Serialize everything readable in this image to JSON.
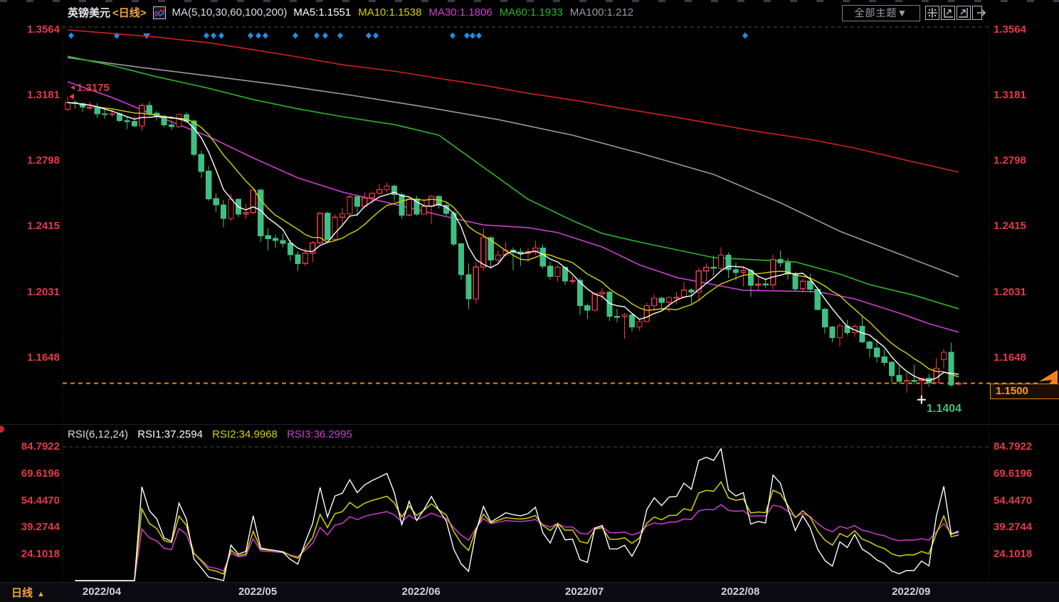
{
  "header": {
    "symbol": "英镑美元",
    "period_tag": "<日线>",
    "indicator_icon": "candlestick-chart-icon",
    "ma_settings": "MA(5,10,30,60,100,200)",
    "ma_legend": [
      {
        "label": "MA5:1.1551",
        "color": "#ffffff"
      },
      {
        "label": "MA10:1.1538",
        "color": "#d4d400"
      },
      {
        "label": "MA30:1.1806",
        "color": "#cf3fcf"
      },
      {
        "label": "MA60:1.1933",
        "color": "#2db52d"
      },
      {
        "label": "MA100:1.212",
        "color": "#9a9aa2"
      }
    ],
    "theme_selector": "全部主题▼",
    "toolbar_icons": [
      "move-icon",
      "left-axis-chart-icon",
      "right-axis-chart-icon",
      "detach-window-icon"
    ]
  },
  "price_axis": {
    "labels": [
      1.3564,
      1.3181,
      1.2798,
      1.2415,
      1.2031,
      1.1648
    ],
    "color": "#e23b47"
  },
  "annotations": {
    "period_high": "1.3175",
    "high_value": 1.3175,
    "period_low": "1.1404",
    "low_value": 1.1404,
    "last_price": "1.1500",
    "last_price_value": 1.15,
    "last_price_line_color": "#e0831c",
    "low_label_color": "#3fbf83"
  },
  "chart_data": {
    "type": "candlestick",
    "title": "英镑美元 日线 GBP/USD Daily",
    "x_start": "2022-03-30",
    "x_end": "2022-09-14",
    "x_axis_labels": [
      "2022/04",
      "2022/05",
      "2022/06",
      "2022/07",
      "2022/08",
      "2022/09"
    ],
    "y_ticks": [
      1.3564,
      1.3181,
      1.2798,
      1.2415,
      1.2031,
      1.1648
    ],
    "up_color": "#ef3a46",
    "down_color": "#3fbf83",
    "event_marker_color": "#1f8fe6",
    "event_markers_x": [
      100,
      164,
      290,
      300,
      311,
      352,
      363,
      373,
      415,
      445,
      457,
      478,
      518,
      528,
      636,
      656,
      664,
      673,
      1047
    ],
    "event_marker_triangle_x": 206,
    "candles": [
      [
        "03-30",
        1.31,
        1.3175,
        1.309,
        1.3139
      ],
      [
        "03-31",
        1.3139,
        1.3155,
        1.3105,
        1.3134
      ],
      [
        "04-01",
        1.3134,
        1.314,
        1.3085,
        1.3113
      ],
      [
        "04-04",
        1.3113,
        1.3145,
        1.3095,
        1.3113
      ],
      [
        "04-05",
        1.3113,
        1.3135,
        1.305,
        1.3074
      ],
      [
        "04-06",
        1.3074,
        1.31,
        1.3045,
        1.3073
      ],
      [
        "04-07",
        1.3073,
        1.3105,
        1.3055,
        1.3074
      ],
      [
        "04-08",
        1.3074,
        1.3085,
        1.3025,
        1.3034
      ],
      [
        "04-11",
        1.3034,
        1.306,
        1.2985,
        1.3029
      ],
      [
        "04-12",
        1.3029,
        1.306,
        1.2995,
        1.3003
      ],
      [
        "04-13",
        1.3003,
        1.3135,
        1.2975,
        1.3122
      ],
      [
        "04-14",
        1.3122,
        1.3147,
        1.306,
        1.3078
      ],
      [
        "04-15",
        1.3078,
        1.309,
        1.3035,
        1.306
      ],
      [
        "04-18",
        1.306,
        1.3065,
        1.2995,
        1.3009
      ],
      [
        "04-19",
        1.3009,
        1.3035,
        1.298,
        1.2999
      ],
      [
        "04-20",
        1.2999,
        1.3075,
        1.299,
        1.3069
      ],
      [
        "04-21",
        1.3069,
        1.3085,
        1.302,
        1.3031
      ],
      [
        "04-22",
        1.3031,
        1.304,
        1.2825,
        1.2837
      ],
      [
        "04-25",
        1.2837,
        1.286,
        1.27,
        1.2738
      ],
      [
        "04-26",
        1.2738,
        1.277,
        1.2565,
        1.2578
      ],
      [
        "04-27",
        1.2578,
        1.261,
        1.25,
        1.2541
      ],
      [
        "04-28",
        1.2541,
        1.257,
        1.241,
        1.2462
      ],
      [
        "04-29",
        1.2462,
        1.2605,
        1.245,
        1.2575
      ],
      [
        "05-02",
        1.2575,
        1.258,
        1.247,
        1.2489
      ],
      [
        "05-03",
        1.2489,
        1.255,
        1.246,
        1.2497
      ],
      [
        "05-04",
        1.2497,
        1.2635,
        1.249,
        1.2629
      ],
      [
        "05-05",
        1.2629,
        1.2635,
        1.2325,
        1.2362
      ],
      [
        "05-06",
        1.2362,
        1.2405,
        1.2275,
        1.2345
      ],
      [
        "05-09",
        1.2345,
        1.237,
        1.229,
        1.2334
      ],
      [
        "05-10",
        1.2334,
        1.2375,
        1.2295,
        1.2318
      ],
      [
        "05-11",
        1.2318,
        1.2335,
        1.2215,
        1.2251
      ],
      [
        "05-12",
        1.2251,
        1.227,
        1.2155,
        1.22
      ],
      [
        "05-13",
        1.22,
        1.229,
        1.2185,
        1.226
      ],
      [
        "05-16",
        1.226,
        1.233,
        1.221,
        1.232
      ],
      [
        "05-17",
        1.232,
        1.25,
        1.231,
        1.2493
      ],
      [
        "05-18",
        1.2493,
        1.2505,
        1.233,
        1.234
      ],
      [
        "05-19",
        1.234,
        1.2485,
        1.233,
        1.247
      ],
      [
        "05-20",
        1.247,
        1.2525,
        1.243,
        1.249
      ],
      [
        "05-23",
        1.249,
        1.26,
        1.247,
        1.2588
      ],
      [
        "05-24",
        1.2588,
        1.26,
        1.2475,
        1.2533
      ],
      [
        "05-25",
        1.2533,
        1.2615,
        1.252,
        1.2582
      ],
      [
        "05-26",
        1.2582,
        1.262,
        1.2545,
        1.261
      ],
      [
        "05-27",
        1.261,
        1.2665,
        1.26,
        1.2631
      ],
      [
        "05-30",
        1.2631,
        1.267,
        1.2615,
        1.2652
      ],
      [
        "05-31",
        1.2652,
        1.266,
        1.256,
        1.2602
      ],
      [
        "06-01",
        1.2602,
        1.2615,
        1.246,
        1.2482
      ],
      [
        "06-02",
        1.2482,
        1.259,
        1.2475,
        1.2576
      ],
      [
        "06-03",
        1.2576,
        1.2595,
        1.248,
        1.2488
      ],
      [
        "06-06",
        1.2488,
        1.2575,
        1.2485,
        1.2533
      ],
      [
        "06-07",
        1.2533,
        1.26,
        1.243,
        1.2591
      ],
      [
        "06-08",
        1.2591,
        1.26,
        1.252,
        1.2539
      ],
      [
        "06-09",
        1.2539,
        1.256,
        1.248,
        1.2493
      ],
      [
        "06-10",
        1.2493,
        1.2505,
        1.23,
        1.2314
      ],
      [
        "06-13",
        1.2314,
        1.232,
        1.2105,
        1.2134
      ],
      [
        "06-14",
        1.2134,
        1.22,
        1.1934,
        1.1993
      ],
      [
        "06-15",
        1.1993,
        1.221,
        1.1965,
        1.2179
      ],
      [
        "06-16",
        1.2179,
        1.2406,
        1.216,
        1.2351
      ],
      [
        "06-17",
        1.2351,
        1.236,
        1.217,
        1.222
      ],
      [
        "06-20",
        1.222,
        1.2275,
        1.22,
        1.2249
      ],
      [
        "06-21",
        1.2249,
        1.2325,
        1.224,
        1.2277
      ],
      [
        "06-22",
        1.2277,
        1.2295,
        1.216,
        1.2266
      ],
      [
        "06-23",
        1.2266,
        1.229,
        1.2185,
        1.226
      ],
      [
        "06-24",
        1.226,
        1.229,
        1.221,
        1.2268
      ],
      [
        "06-27",
        1.2268,
        1.2332,
        1.225,
        1.229
      ],
      [
        "06-28",
        1.229,
        1.231,
        1.217,
        1.2184
      ],
      [
        "06-29",
        1.2184,
        1.221,
        1.2105,
        1.2124
      ],
      [
        "06-30",
        1.2124,
        1.219,
        1.2095,
        1.2178
      ],
      [
        "07-01",
        1.2178,
        1.218,
        1.2075,
        1.2098
      ],
      [
        "07-04",
        1.2098,
        1.2125,
        1.208,
        1.21
      ],
      [
        "07-05",
        1.21,
        1.2115,
        1.19,
        1.1953
      ],
      [
        "07-06",
        1.1953,
        1.1965,
        1.1875,
        1.1926
      ],
      [
        "07-07",
        1.1926,
        1.203,
        1.192,
        1.2023
      ],
      [
        "07-08",
        1.2023,
        1.2055,
        1.1985,
        1.2033
      ],
      [
        "07-11",
        1.2033,
        1.204,
        1.1865,
        1.1891
      ],
      [
        "07-12",
        1.1891,
        1.1935,
        1.1855,
        1.189
      ],
      [
        "07-13",
        1.189,
        1.191,
        1.176,
        1.1899
      ],
      [
        "07-14",
        1.1899,
        1.1905,
        1.18,
        1.1829
      ],
      [
        "07-15",
        1.1829,
        1.187,
        1.1805,
        1.186
      ],
      [
        "07-18",
        1.186,
        1.197,
        1.1855,
        1.1953
      ],
      [
        "07-19",
        1.1953,
        1.202,
        1.1925,
        1.1997
      ],
      [
        "07-20",
        1.1997,
        1.2005,
        1.1935,
        1.1973
      ],
      [
        "07-21",
        1.1973,
        1.201,
        1.1915,
        1.2001
      ],
      [
        "07-22",
        1.2001,
        1.2035,
        1.196,
        1.2003
      ],
      [
        "07-25",
        1.2003,
        1.209,
        1.1995,
        1.2044
      ],
      [
        "07-26",
        1.2044,
        1.2055,
        1.196,
        1.2033
      ],
      [
        "07-27",
        1.2033,
        1.2175,
        1.1985,
        1.2156
      ],
      [
        "07-28",
        1.2156,
        1.22,
        1.209,
        1.2177
      ],
      [
        "07-29",
        1.2177,
        1.2245,
        1.213,
        1.2172
      ],
      [
        "08-01",
        1.2172,
        1.2295,
        1.216,
        1.2249
      ],
      [
        "08-02",
        1.2249,
        1.2265,
        1.2115,
        1.2163
      ],
      [
        "08-03",
        1.2163,
        1.2205,
        1.21,
        1.2148
      ],
      [
        "08-04",
        1.2148,
        1.2185,
        1.2065,
        1.2158
      ],
      [
        "08-05",
        1.2158,
        1.217,
        1.2005,
        1.2073
      ],
      [
        "08-08",
        1.2073,
        1.2135,
        1.2045,
        1.2079
      ],
      [
        "08-09",
        1.2079,
        1.2115,
        1.206,
        1.2075
      ],
      [
        "08-10",
        1.2075,
        1.225,
        1.205,
        1.2223
      ],
      [
        "08-11",
        1.2223,
        1.2275,
        1.218,
        1.2204
      ],
      [
        "08-12",
        1.2204,
        1.223,
        1.2105,
        1.2138
      ],
      [
        "08-15",
        1.2138,
        1.215,
        1.2035,
        1.2052
      ],
      [
        "08-16",
        1.2052,
        1.211,
        1.203,
        1.2096
      ],
      [
        "08-17",
        1.2096,
        1.214,
        1.203,
        1.2049
      ],
      [
        "08-18",
        1.2049,
        1.206,
        1.1925,
        1.1932
      ],
      [
        "08-19",
        1.1932,
        1.194,
        1.179,
        1.1829
      ],
      [
        "08-22",
        1.1829,
        1.1835,
        1.174,
        1.1766
      ],
      [
        "08-23",
        1.1766,
        1.185,
        1.1715,
        1.1835
      ],
      [
        "08-24",
        1.1835,
        1.187,
        1.178,
        1.1795
      ],
      [
        "08-25",
        1.1795,
        1.1845,
        1.177,
        1.1832
      ],
      [
        "08-26",
        1.1832,
        1.19,
        1.1735,
        1.1741
      ],
      [
        "08-29",
        1.1741,
        1.175,
        1.165,
        1.1705
      ],
      [
        "08-30",
        1.1705,
        1.176,
        1.162,
        1.1654
      ],
      [
        "08-31",
        1.1654,
        1.1695,
        1.16,
        1.1622
      ],
      [
        "09-01",
        1.1622,
        1.163,
        1.15,
        1.1545
      ],
      [
        "09-02",
        1.1545,
        1.16,
        1.1498,
        1.1511
      ],
      [
        "09-05",
        1.1511,
        1.156,
        1.1444,
        1.1517
      ],
      [
        "09-06",
        1.1517,
        1.1608,
        1.1495,
        1.1516
      ],
      [
        "09-07",
        1.1516,
        1.153,
        1.1404,
        1.1529
      ],
      [
        "09-08",
        1.1529,
        1.1555,
        1.148,
        1.1503
      ],
      [
        "09-09",
        1.1503,
        1.1647,
        1.15,
        1.1588
      ],
      [
        "09-12",
        1.1638,
        1.1699,
        1.1585,
        1.1681
      ],
      [
        "09-13",
        1.1681,
        1.1738,
        1.148,
        1.149
      ],
      [
        "09-14",
        1.15,
        1.1513,
        1.1486,
        1.15
      ]
    ],
    "ma_colors": {
      "ma5": "#ffffff",
      "ma10": "#d4d400",
      "ma30": "#cf3fcf",
      "ma60": "#2db52d",
      "ma100": "#9a9aa2",
      "ma200": "#d22020"
    },
    "ma_overlays": {
      "ma200": [
        [
          0,
          1.3564
        ],
        [
          6,
          1.3543
        ],
        [
          12,
          1.3522
        ],
        [
          19,
          1.3489
        ],
        [
          25,
          1.3448
        ],
        [
          31,
          1.3406
        ],
        [
          37,
          1.336
        ],
        [
          44,
          1.3323
        ],
        [
          50,
          1.3281
        ],
        [
          56,
          1.324
        ],
        [
          62,
          1.3194
        ],
        [
          69,
          1.3148
        ],
        [
          75,
          1.3103
        ],
        [
          81,
          1.3061
        ],
        [
          87,
          1.3015
        ],
        [
          93,
          1.297
        ],
        [
          100,
          1.2924
        ],
        [
          106,
          1.2874
        ],
        [
          112,
          1.2812
        ],
        [
          120,
          1.2733
        ]
      ],
      "ma100": [
        [
          0,
          1.3402
        ],
        [
          10,
          1.3344
        ],
        [
          20,
          1.329
        ],
        [
          29,
          1.324
        ],
        [
          39,
          1.3177
        ],
        [
          48,
          1.3115
        ],
        [
          58,
          1.304
        ],
        [
          68,
          1.2949
        ],
        [
          77,
          1.2845
        ],
        [
          87,
          1.272
        ],
        [
          96,
          1.2554
        ],
        [
          104,
          1.2388
        ],
        [
          112,
          1.2255
        ],
        [
          120,
          1.2122
        ]
      ],
      "ma60": [
        [
          0,
          1.341
        ],
        [
          6,
          1.3356
        ],
        [
          12,
          1.329
        ],
        [
          19,
          1.3223
        ],
        [
          25,
          1.3157
        ],
        [
          31,
          1.3103
        ],
        [
          37,
          1.3057
        ],
        [
          44,
          1.3011
        ],
        [
          50,
          1.2949
        ],
        [
          56,
          1.2762
        ],
        [
          62,
          1.2575
        ],
        [
          68,
          1.245
        ],
        [
          72,
          1.2375
        ],
        [
          77,
          1.2325
        ],
        [
          87,
          1.2234
        ],
        [
          98,
          1.2209
        ],
        [
          104,
          1.2138
        ],
        [
          108,
          1.2076
        ],
        [
          114,
          1.2014
        ],
        [
          120,
          1.1935
        ]
      ],
      "ma30": [
        [
          0,
          1.3261
        ],
        [
          6,
          1.3169
        ],
        [
          12,
          1.3061
        ],
        [
          19,
          1.2941
        ],
        [
          25,
          1.2816
        ],
        [
          31,
          1.27
        ],
        [
          37,
          1.2617
        ],
        [
          44,
          1.2546
        ],
        [
          50,
          1.2483
        ],
        [
          56,
          1.2425
        ],
        [
          62,
          1.2409
        ],
        [
          66,
          1.238
        ],
        [
          72,
          1.2296
        ],
        [
          77,
          1.2192
        ],
        [
          82,
          1.2118
        ],
        [
          87,
          1.2076
        ],
        [
          91,
          1.2043
        ],
        [
          101,
          1.2035
        ],
        [
          106,
          1.1993
        ],
        [
          112,
          1.191
        ],
        [
          116,
          1.1848
        ],
        [
          120,
          1.1798
        ]
      ]
    }
  },
  "rsi": {
    "label": "RSI(6,12,24)",
    "periods": [
      6,
      12,
      24
    ],
    "values": [
      {
        "label": "RSI1:37.2594",
        "color": "#ffffff"
      },
      {
        "label": "RSI2:34.9968",
        "color": "#d4d400"
      },
      {
        "label": "RSI3:36.2995",
        "color": "#cf3fcf"
      }
    ],
    "axis_labels": [
      84.7922,
      69.6196,
      54.447,
      39.2744,
      24.1018
    ]
  },
  "footer": {
    "period_label": "日线",
    "arrow": "▲",
    "months": [
      "2022/04",
      "2022/05",
      "2022/06",
      "2022/07",
      "2022/08",
      "2022/09"
    ]
  }
}
